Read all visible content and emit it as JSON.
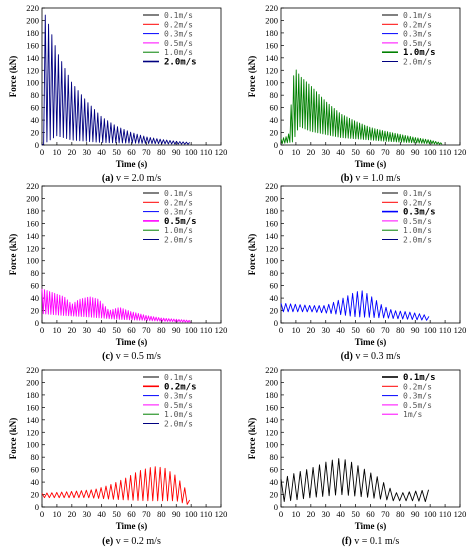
{
  "chart_data": [
    {
      "type": "line",
      "caption_letter": "(a)",
      "caption_text": "v = 2.0 m/s",
      "xlabel": "Time (s)",
      "ylabel": "Force (kN)",
      "xlim": [
        0,
        120
      ],
      "ylim": [
        0,
        220
      ],
      "xticks": [
        "0",
        "10",
        "20",
        "30",
        "40",
        "50",
        "60",
        "70",
        "80",
        "90",
        "100",
        "110",
        "120"
      ],
      "yticks": [
        "0",
        "20",
        "40",
        "60",
        "80",
        "100",
        "120",
        "140",
        "160",
        "180",
        "200",
        "220"
      ],
      "legend": [
        {
          "label": "0.1m/s",
          "color": "#000000"
        },
        {
          "label": "0.2m/s",
          "color": "#ff0000"
        },
        {
          "label": "0.3m/s",
          "color": "#0000ff"
        },
        {
          "label": "0.5m/s",
          "color": "#ff00ff"
        },
        {
          "label": "1.0m/s",
          "color": "#008000"
        },
        {
          "label": "2.0m/s",
          "color": "#000080"
        }
      ],
      "legend_selected": 5,
      "legend_position": "top-right",
      "series": [
        {
          "color": "#000080",
          "t_start": 0,
          "t_end": 100,
          "period": 2.2,
          "envelope": [
            [
              0,
              0
            ],
            [
              2,
              210
            ],
            [
              5,
              190
            ],
            [
              10,
              150
            ],
            [
              20,
              100
            ],
            [
              30,
              70
            ],
            [
              40,
              45
            ],
            [
              50,
              30
            ],
            [
              60,
              20
            ],
            [
              70,
              13
            ],
            [
              80,
              9
            ],
            [
              90,
              6
            ],
            [
              100,
              4
            ]
          ],
          "baseline": [
            [
              0,
              0
            ],
            [
              10,
              15
            ],
            [
              20,
              8
            ],
            [
              40,
              4
            ],
            [
              100,
              1
            ]
          ]
        }
      ]
    },
    {
      "type": "line",
      "caption_letter": "(b)",
      "caption_text": "v = 1.0 m/s",
      "xlabel": "Time (s)",
      "ylabel": "Force (kN)",
      "xlim": [
        0,
        120
      ],
      "ylim": [
        0,
        220
      ],
      "xticks": [
        "0",
        "10",
        "20",
        "30",
        "40",
        "50",
        "60",
        "70",
        "80",
        "90",
        "100",
        "110",
        "120"
      ],
      "yticks": [
        "0",
        "20",
        "40",
        "60",
        "80",
        "100",
        "120",
        "140",
        "160",
        "180",
        "200",
        "220"
      ],
      "legend": [
        {
          "label": "0.1m/s",
          "color": "#000000"
        },
        {
          "label": "0.2m/s",
          "color": "#ff0000"
        },
        {
          "label": "0.3m/s",
          "color": "#0000ff"
        },
        {
          "label": "0.5m/s",
          "color": "#ff00ff"
        },
        {
          "label": "1.0m/s",
          "color": "#008000"
        },
        {
          "label": "2.0m/s",
          "color": "#000080"
        }
      ],
      "legend_selected": 4,
      "legend_position": "top-right",
      "series": [
        {
          "color": "#008000",
          "t_start": 0,
          "t_end": 108,
          "period": 1.7,
          "envelope": [
            [
              0,
              10
            ],
            [
              5,
              15
            ],
            [
              9,
              125
            ],
            [
              13,
              110
            ],
            [
              20,
              95
            ],
            [
              30,
              70
            ],
            [
              40,
              50
            ],
            [
              50,
              38
            ],
            [
              60,
              28
            ],
            [
              70,
              22
            ],
            [
              80,
              17
            ],
            [
              90,
              12
            ],
            [
              100,
              8
            ],
            [
              108,
              3
            ]
          ],
          "baseline": [
            [
              0,
              2
            ],
            [
              8,
              5
            ],
            [
              12,
              30
            ],
            [
              20,
              22
            ],
            [
              40,
              12
            ],
            [
              70,
              6
            ],
            [
              108,
              1
            ]
          ]
        }
      ]
    },
    {
      "type": "line",
      "caption_letter": "(c)",
      "caption_text": "v = 0.5 m/s",
      "xlabel": "Time (s)",
      "ylabel": "Force (kN)",
      "xlim": [
        0,
        120
      ],
      "ylim": [
        0,
        220
      ],
      "xticks": [
        "0",
        "10",
        "20",
        "30",
        "40",
        "50",
        "60",
        "70",
        "80",
        "90",
        "100",
        "110",
        "120"
      ],
      "yticks": [
        "0",
        "20",
        "40",
        "60",
        "80",
        "100",
        "120",
        "140",
        "160",
        "180",
        "200",
        "220"
      ],
      "legend": [
        {
          "label": "0.1m/s",
          "color": "#000000"
        },
        {
          "label": "0.2m/s",
          "color": "#ff0000"
        },
        {
          "label": "0.3m/s",
          "color": "#0000ff"
        },
        {
          "label": "0.5m/s",
          "color": "#ff00ff"
        },
        {
          "label": "1.0m/s",
          "color": "#008000"
        },
        {
          "label": "2.0m/s",
          "color": "#000080"
        }
      ],
      "legend_selected": 3,
      "legend_position": "top-right",
      "series": [
        {
          "color": "#ff00ff",
          "t_start": 0,
          "t_end": 100,
          "period": 1.7,
          "envelope": [
            [
              0,
              55
            ],
            [
              8,
              48
            ],
            [
              15,
              42
            ],
            [
              20,
              30
            ],
            [
              25,
              38
            ],
            [
              32,
              42
            ],
            [
              38,
              38
            ],
            [
              45,
              20
            ],
            [
              52,
              25
            ],
            [
              60,
              18
            ],
            [
              70,
              12
            ],
            [
              80,
              8
            ],
            [
              90,
              6
            ],
            [
              100,
              4
            ]
          ],
          "baseline": [
            [
              0,
              15
            ],
            [
              15,
              12
            ],
            [
              30,
              10
            ],
            [
              50,
              6
            ],
            [
              100,
              1
            ]
          ]
        }
      ]
    },
    {
      "type": "line",
      "caption_letter": "(d)",
      "caption_text": "v = 0.3 m/s",
      "xlabel": "Time (s)",
      "ylabel": "Force (kN)",
      "xlim": [
        0,
        120
      ],
      "ylim": [
        0,
        220
      ],
      "xticks": [
        "0",
        "10",
        "20",
        "30",
        "40",
        "50",
        "60",
        "70",
        "80",
        "90",
        "100",
        "110",
        "120"
      ],
      "yticks": [
        "0",
        "20",
        "40",
        "60",
        "80",
        "100",
        "120",
        "140",
        "160",
        "180",
        "200",
        "220"
      ],
      "legend": [
        {
          "label": "0.1m/s",
          "color": "#000000"
        },
        {
          "label": "0.2m/s",
          "color": "#ff0000"
        },
        {
          "label": "0.3m/s",
          "color": "#0000ff"
        },
        {
          "label": "0.5m/s",
          "color": "#ff00ff"
        },
        {
          "label": "1.0m/s",
          "color": "#008000"
        },
        {
          "label": "2.0m/s",
          "color": "#000080"
        }
      ],
      "legend_selected": 2,
      "legend_position": "top-right",
      "series": [
        {
          "color": "#0000ff",
          "t_start": 0,
          "t_end": 100,
          "period": 3.2,
          "envelope": [
            [
              0,
              32
            ],
            [
              10,
              30
            ],
            [
              20,
              28
            ],
            [
              30,
              28
            ],
            [
              40,
              38
            ],
            [
              50,
              50
            ],
            [
              55,
              52
            ],
            [
              62,
              40
            ],
            [
              68,
              28
            ],
            [
              75,
              20
            ],
            [
              85,
              18
            ],
            [
              95,
              14
            ],
            [
              100,
              10
            ]
          ],
          "baseline": [
            [
              0,
              18
            ],
            [
              20,
              18
            ],
            [
              35,
              15
            ],
            [
              50,
              10
            ],
            [
              70,
              8
            ],
            [
              100,
              4
            ]
          ]
        }
      ]
    },
    {
      "type": "line",
      "caption_letter": "(e)",
      "caption_text": "v = 0.2 m/s",
      "xlabel": "Time (s)",
      "ylabel": "Force (kN)",
      "xlim": [
        0,
        120
      ],
      "ylim": [
        0,
        220
      ],
      "xticks": [
        "0",
        "10",
        "20",
        "30",
        "40",
        "50",
        "60",
        "70",
        "80",
        "90",
        "100",
        "110",
        "120"
      ],
      "yticks": [
        "0",
        "20",
        "40",
        "60",
        "80",
        "100",
        "120",
        "140",
        "160",
        "180",
        "200",
        "220"
      ],
      "legend": [
        {
          "label": "0.1m/s",
          "color": "#000000"
        },
        {
          "label": "0.2m/s",
          "color": "#ff0000"
        },
        {
          "label": "0.3m/s",
          "color": "#0000ff"
        },
        {
          "label": "0.5m/s",
          "color": "#ff00ff"
        },
        {
          "label": "1.0m/s",
          "color": "#008000"
        },
        {
          "label": "2.0m/s",
          "color": "#000080"
        }
      ],
      "legend_selected": 1,
      "legend_position": "top-right",
      "series": [
        {
          "color": "#ff0000",
          "t_start": 0,
          "t_end": 100,
          "period": 3.3,
          "envelope": [
            [
              0,
              22
            ],
            [
              20,
              25
            ],
            [
              35,
              28
            ],
            [
              45,
              35
            ],
            [
              55,
              45
            ],
            [
              65,
              58
            ],
            [
              75,
              65
            ],
            [
              82,
              63
            ],
            [
              90,
              50
            ],
            [
              96,
              30
            ],
            [
              100,
              5
            ]
          ],
          "baseline": [
            [
              0,
              15
            ],
            [
              30,
              15
            ],
            [
              50,
              12
            ],
            [
              70,
              10
            ],
            [
              90,
              10
            ],
            [
              100,
              2
            ]
          ]
        }
      ]
    },
    {
      "type": "line",
      "caption_letter": "(f)",
      "caption_text": "v = 0.1 m/s",
      "xlabel": "Time (s)",
      "ylabel": "Force (kN)",
      "xlim": [
        0,
        120
      ],
      "ylim": [
        0,
        220
      ],
      "xticks": [
        "0",
        "10",
        "20",
        "30",
        "40",
        "50",
        "60",
        "70",
        "80",
        "90",
        "100",
        "110",
        "120"
      ],
      "yticks": [
        "0",
        "20",
        "40",
        "60",
        "80",
        "100",
        "120",
        "140",
        "160",
        "180",
        "200",
        "220"
      ],
      "legend": [
        {
          "label": "0.1m/s",
          "color": "#000000"
        },
        {
          "label": "0.2m/s",
          "color": "#ff0000"
        },
        {
          "label": "0.3m/s",
          "color": "#0000ff"
        },
        {
          "label": "0.5m/s",
          "color": "#ff00ff"
        },
        {
          "label": "1m/s",
          "color": "#ff00ff"
        }
      ],
      "legend_selected": 0,
      "legend_position": "top-right",
      "series": [
        {
          "color": "#000000",
          "t_start": 0,
          "t_end": 100,
          "period": 4.3,
          "envelope": [
            [
              0,
              45
            ],
            [
              10,
              55
            ],
            [
              20,
              62
            ],
            [
              30,
              72
            ],
            [
              38,
              78
            ],
            [
              45,
              75
            ],
            [
              55,
              62
            ],
            [
              65,
              48
            ],
            [
              72,
              32
            ],
            [
              78,
              22
            ],
            [
              88,
              25
            ],
            [
              100,
              28
            ]
          ],
          "baseline": [
            [
              0,
              8
            ],
            [
              20,
              15
            ],
            [
              40,
              20
            ],
            [
              60,
              15
            ],
            [
              75,
              10
            ],
            [
              90,
              10
            ],
            [
              100,
              8
            ]
          ]
        }
      ]
    }
  ]
}
